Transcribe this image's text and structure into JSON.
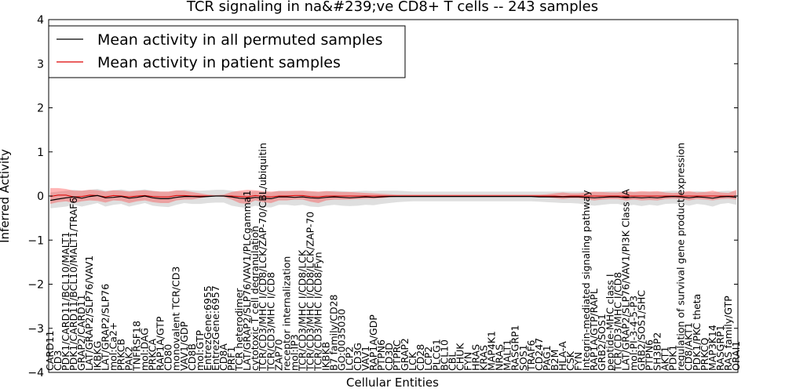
{
  "chart_data": {
    "type": "line",
    "title": "TCR signaling in na&#239;ve CD8+ T cells -- 243 samples",
    "xlabel": "Cellular Entities",
    "ylabel": "Inferred Activity",
    "ylim": [
      -4,
      4
    ],
    "yticks": [
      "4",
      "3",
      "2",
      "1",
      "0",
      "−1",
      "−2",
      "−3",
      "−4"
    ],
    "legend_position": "top-left",
    "categories": [
      "CARD11",
      "CD3",
      "PDK1/CARD11/BCL10/MALT1",
      "PDK1/CARD11/BCL10/MALT1/TRAF6",
      "GRAP2/CARD11",
      "LAT/GRAP2/SLP76/VAV1",
      "IKBKG",
      "LAT/GRAP2/SLP76",
      "mol:Ca2+",
      "PRKCB",
      "PAK2",
      "TNFRSF18",
      "mol:DAG",
      "PRKCA",
      "RAP1A/GTP",
      "CD80",
      "monovalent TCR/CD3",
      "VAV1/GDP",
      "CD8B",
      "mol:GTP",
      "EntrezGene:6955",
      "EntrezGene:6957",
      "CD8A",
      "PRF1",
      "TCR heterodimer",
      "LAT/GRAP2/SLP76/VAV1/PLCgamma1",
      "cytotoxic T cell degranulation",
      "TCR/CD3/MHC I/CD8/LCK/ZAP-70/CBL/ubiquitin",
      "TCR/CD3/MHC I/CD8",
      "ZAP70",
      "receptor internalization",
      "mol:IP3",
      "TCR/CD3/MHC I/CD8/LCK",
      "TCR/CD3/MHC I/CD8/LCK/ZAP-70",
      "TCR/CD3/MHC I/CD8/Fyn",
      "IKBKB",
      "B7 family/CD28",
      "GO:0035030",
      "LCP2",
      "CD3G",
      "VAV1",
      "RAP1A/GDP",
      "PTPN6",
      "CD3D",
      "PTPRC",
      "GRAP2",
      "LCK",
      "CD28",
      "LCP2",
      "PLCG1",
      "BCL10",
      "CBL",
      "CHUK",
      "FYN",
      "HRAS",
      "KRAS",
      "MAP4K1",
      "NRAS",
      "MALT1",
      "RASGRP1",
      "SOS1",
      "TRAF6",
      "CD247",
      "PAG1",
      "B2M",
      "HLA-A",
      "CSK",
      "FYN",
      "Integrin-mediated signaling pathway",
      "RAP1A/GTP/RAPL",
      "GRB2/SOS1",
      "peptide-MHC class I",
      "TCR/CD3/MHC I/CD8",
      "LAT/GRAP2/SLP76/VAV1/PI3K Class IA",
      "mol:PI-3-4-5-P3",
      "GRB2/SOS1/SHC",
      "PTPN6",
      "SH3BP2",
      "AKT1",
      "PDK1",
      "regulation of survival gene product expression",
      "CD8/AKT1",
      "PDK1/PKC theta",
      "PRKCQ",
      "MAP3K14",
      "RASGRP1",
      "RAS family/GTP",
      "ORAI1"
    ],
    "series": [
      {
        "name": "Mean activity in all permuted samples",
        "color": "#000000",
        "values": [
          -0.1,
          -0.07,
          -0.04,
          -0.02,
          -0.05,
          -0.01,
          0.01,
          -0.04,
          -0.03,
          -0.01,
          -0.05,
          -0.03,
          0.0,
          -0.04,
          -0.06,
          -0.06,
          -0.03,
          -0.01,
          -0.01,
          -0.02,
          -0.01,
          0.0,
          0.0,
          -0.02,
          -0.05,
          -0.06,
          -0.03,
          -0.05,
          -0.06,
          -0.02,
          -0.02,
          -0.03,
          -0.02,
          -0.04,
          -0.05,
          -0.03,
          -0.02,
          -0.03,
          -0.04,
          -0.03,
          -0.02,
          -0.03,
          -0.02,
          -0.01,
          -0.01,
          -0.01,
          -0.01,
          -0.01,
          -0.01,
          -0.01,
          -0.01,
          -0.01,
          -0.01,
          -0.01,
          -0.01,
          -0.01,
          -0.01,
          -0.01,
          -0.01,
          -0.01,
          -0.01,
          -0.01,
          -0.02,
          -0.02,
          -0.02,
          -0.02,
          -0.02,
          -0.02,
          -0.03,
          -0.04,
          -0.03,
          -0.02,
          -0.02,
          -0.04,
          -0.03,
          -0.04,
          -0.03,
          -0.04,
          -0.02,
          -0.01,
          -0.02,
          -0.04,
          -0.02,
          -0.03,
          -0.05,
          -0.02,
          -0.01,
          -0.03
        ],
        "band_low": [
          -0.28,
          -0.26,
          -0.24,
          -0.2,
          -0.24,
          -0.2,
          -0.16,
          -0.24,
          -0.2,
          -0.18,
          -0.24,
          -0.2,
          -0.16,
          -0.22,
          -0.24,
          -0.25,
          -0.2,
          -0.16,
          -0.18,
          -0.18,
          -0.16,
          -0.15,
          -0.15,
          -0.22,
          -0.25,
          -0.27,
          -0.22,
          -0.25,
          -0.26,
          -0.2,
          -0.2,
          -0.22,
          -0.2,
          -0.24,
          -0.25,
          -0.22,
          -0.2,
          -0.22,
          -0.23,
          -0.22,
          -0.2,
          -0.21,
          -0.18,
          -0.16,
          -0.14,
          -0.13,
          -0.12,
          -0.12,
          -0.12,
          -0.12,
          -0.12,
          -0.12,
          -0.12,
          -0.12,
          -0.12,
          -0.12,
          -0.12,
          -0.12,
          -0.12,
          -0.12,
          -0.12,
          -0.12,
          -0.13,
          -0.14,
          -0.15,
          -0.16,
          -0.16,
          -0.17,
          -0.2,
          -0.22,
          -0.2,
          -0.18,
          -0.18,
          -0.22,
          -0.2,
          -0.23,
          -0.2,
          -0.22,
          -0.18,
          -0.17,
          -0.18,
          -0.22,
          -0.18,
          -0.2,
          -0.24,
          -0.18,
          -0.16,
          -0.2
        ],
        "band_high": [
          0.08,
          0.1,
          0.12,
          0.14,
          0.12,
          0.14,
          0.16,
          0.12,
          0.13,
          0.15,
          0.12,
          0.13,
          0.15,
          0.12,
          0.1,
          0.1,
          0.12,
          0.14,
          0.13,
          0.12,
          0.13,
          0.14,
          0.14,
          0.12,
          0.1,
          0.08,
          0.11,
          0.09,
          0.08,
          0.12,
          0.12,
          0.11,
          0.12,
          0.1,
          0.09,
          0.11,
          0.12,
          0.11,
          0.1,
          0.11,
          0.12,
          0.11,
          0.12,
          0.12,
          0.12,
          0.11,
          0.1,
          0.1,
          0.1,
          0.1,
          0.1,
          0.1,
          0.1,
          0.1,
          0.1,
          0.1,
          0.1,
          0.1,
          0.1,
          0.1,
          0.1,
          0.1,
          0.1,
          0.1,
          0.1,
          0.1,
          0.1,
          0.1,
          0.1,
          0.09,
          0.1,
          0.11,
          0.11,
          0.09,
          0.1,
          0.09,
          0.1,
          0.09,
          0.11,
          0.12,
          0.11,
          0.09,
          0.11,
          0.1,
          0.08,
          0.11,
          0.12,
          0.1
        ]
      },
      {
        "name": "Mean activity in patient samples",
        "color": "#dd0000",
        "values": [
          -0.01,
          0.02,
          0.02,
          -0.02,
          -0.01,
          0.02,
          0.01,
          -0.02,
          0.01,
          0.0,
          -0.02,
          0.0,
          0.01,
          -0.01,
          -0.02,
          -0.02,
          0.01,
          0.01,
          0.0,
          0.0,
          0.0,
          0.0,
          0.0,
          0.0,
          -0.01,
          -0.02,
          0.01,
          -0.01,
          -0.02,
          0.0,
          0.0,
          0.01,
          0.01,
          -0.01,
          -0.02,
          0.0,
          0.0,
          0.0,
          0.0,
          0.0,
          0.0,
          0.0,
          0.0,
          0.0,
          0.0,
          0.0,
          0.0,
          0.0,
          0.0,
          0.0,
          0.0,
          0.0,
          0.0,
          0.0,
          0.0,
          0.0,
          0.0,
          0.0,
          0.0,
          0.0,
          0.0,
          0.0,
          0.0,
          0.0,
          0.0,
          -0.01,
          0.0,
          0.0,
          0.0,
          0.0,
          0.0,
          0.0,
          0.0,
          0.0,
          0.0,
          0.0,
          0.0,
          0.0,
          0.0,
          0.0,
          0.0,
          0.0,
          0.0,
          0.0,
          0.0,
          0.0,
          0.0,
          0.0
        ],
        "band_low": [
          -0.18,
          -0.14,
          -0.12,
          -0.16,
          -0.12,
          -0.1,
          -0.11,
          -0.15,
          -0.1,
          -0.11,
          -0.16,
          -0.12,
          -0.1,
          -0.14,
          -0.16,
          -0.16,
          -0.1,
          -0.08,
          -0.08,
          -0.05,
          -0.02,
          0.0,
          -0.02,
          -0.08,
          -0.16,
          -0.18,
          -0.1,
          -0.14,
          -0.16,
          -0.1,
          -0.1,
          -0.08,
          -0.08,
          -0.13,
          -0.16,
          -0.1,
          -0.08,
          -0.08,
          -0.08,
          -0.07,
          -0.06,
          -0.06,
          -0.05,
          -0.03,
          -0.02,
          -0.02,
          -0.02,
          -0.02,
          -0.02,
          -0.02,
          -0.02,
          -0.02,
          -0.02,
          -0.02,
          -0.02,
          -0.02,
          -0.02,
          -0.02,
          -0.02,
          -0.02,
          -0.02,
          -0.02,
          -0.02,
          -0.03,
          -0.05,
          -0.07,
          -0.05,
          -0.05,
          -0.08,
          -0.1,
          -0.08,
          -0.07,
          -0.07,
          -0.1,
          -0.08,
          -0.1,
          -0.09,
          -0.1,
          -0.07,
          -0.06,
          -0.07,
          -0.1,
          -0.07,
          -0.08,
          -0.1,
          -0.07,
          -0.06,
          -0.08
        ],
        "band_high": [
          0.18,
          0.18,
          0.16,
          0.12,
          0.12,
          0.14,
          0.13,
          0.1,
          0.13,
          0.12,
          0.1,
          0.12,
          0.13,
          0.11,
          0.1,
          0.1,
          0.13,
          0.12,
          0.09,
          0.06,
          0.03,
          0.02,
          0.03,
          0.09,
          0.12,
          0.14,
          0.13,
          0.11,
          0.1,
          0.11,
          0.11,
          0.12,
          0.12,
          0.11,
          0.1,
          0.11,
          0.1,
          0.09,
          0.09,
          0.08,
          0.07,
          0.06,
          0.05,
          0.04,
          0.03,
          0.03,
          0.03,
          0.03,
          0.03,
          0.03,
          0.03,
          0.03,
          0.03,
          0.03,
          0.03,
          0.03,
          0.03,
          0.03,
          0.03,
          0.03,
          0.03,
          0.03,
          0.03,
          0.04,
          0.06,
          0.08,
          0.06,
          0.06,
          0.08,
          0.1,
          0.09,
          0.08,
          0.08,
          0.11,
          0.09,
          0.11,
          0.1,
          0.11,
          0.08,
          0.07,
          0.08,
          0.11,
          0.08,
          0.09,
          0.12,
          0.08,
          0.07,
          0.14
        ]
      }
    ]
  }
}
